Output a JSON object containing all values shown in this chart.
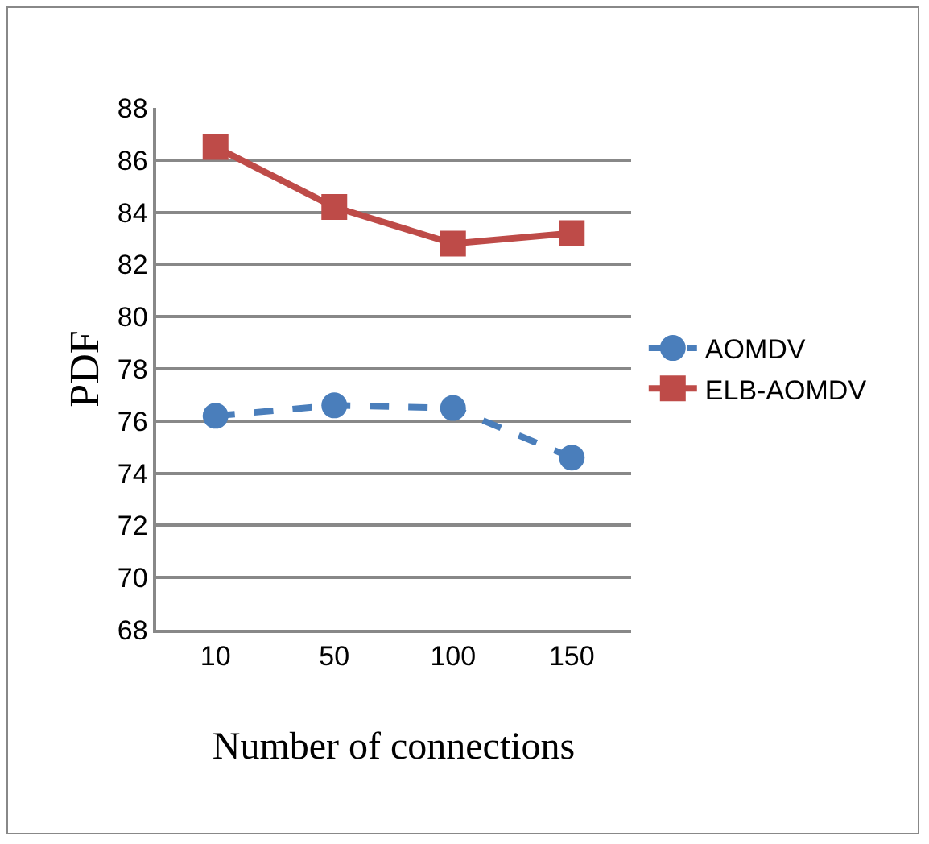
{
  "chart_data": {
    "type": "line",
    "xlabel": "Number of connections",
    "ylabel": "PDF",
    "categories": [
      "10",
      "50",
      "100",
      "150"
    ],
    "series": [
      {
        "name": "AOMDV",
        "color": "#4a7ebb",
        "values": [
          76.2,
          76.6,
          76.5,
          74.6
        ],
        "marker": "circle",
        "line_style": "dashed"
      },
      {
        "name": "ELB-AOMDV",
        "color": "#be4b48",
        "values": [
          86.5,
          84.2,
          82.8,
          83.2
        ],
        "marker": "square",
        "line_style": "solid"
      }
    ],
    "ylim": [
      68,
      88
    ],
    "yticks": [
      68,
      70,
      72,
      74,
      76,
      78,
      80,
      82,
      84,
      86,
      88
    ],
    "grid": "y",
    "legend": "right"
  }
}
